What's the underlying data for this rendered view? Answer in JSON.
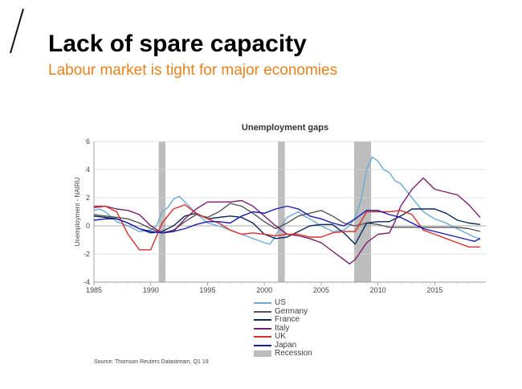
{
  "slide": {
    "title": "Lack of spare capacity",
    "subtitle": "Labour market is tight for major economies",
    "source": "Source: Thomson Reuters Datastream, Q1 19"
  },
  "colors": {
    "accent": "#e8821e",
    "US": "#6aaad6",
    "Germany": "#555555",
    "France": "#0a2a5c",
    "Italy": "#7a1f6f",
    "UK": "#d8322f",
    "Japan": "#1a1aae",
    "Recession": "#bdbdbd"
  },
  "chart_data": {
    "type": "line",
    "title": "Unemployment gaps",
    "xlabel": "",
    "ylabel": "Unemployment - NAIRU",
    "xlim": [
      1985,
      2019.5
    ],
    "ylim": [
      -4,
      6
    ],
    "xticks": [
      "1985",
      "1990",
      "1995",
      "2000",
      "2005",
      "2010",
      "2015"
    ],
    "yticks": [
      "-4",
      "-2",
      "0",
      "2",
      "4",
      "6"
    ],
    "grid": "horizontal",
    "legend_position": "bottom",
    "recessions": [
      [
        1990.7,
        1991.3
      ],
      [
        2001.2,
        2001.8
      ],
      [
        2007.9,
        2009.4
      ]
    ],
    "series": [
      {
        "name": "US",
        "points": [
          [
            1985,
            1.1
          ],
          [
            1985.5,
            1.2
          ],
          [
            1986,
            1.0
          ],
          [
            1987,
            0.3
          ],
          [
            1988,
            0
          ],
          [
            1989,
            -0.4
          ],
          [
            1990,
            -0.3
          ],
          [
            1990.5,
            0
          ],
          [
            1991,
            1.0
          ],
          [
            1991.5,
            1.3
          ],
          [
            1992,
            1.9
          ],
          [
            1992.5,
            2.1
          ],
          [
            1993,
            1.7
          ],
          [
            1994,
            0.9
          ],
          [
            1995,
            0.2
          ],
          [
            1996,
            0
          ],
          [
            1997,
            -0.3
          ],
          [
            1998,
            -0.6
          ],
          [
            1999,
            -0.9
          ],
          [
            2000,
            -1.2
          ],
          [
            2000.5,
            -1.3
          ],
          [
            2001,
            -0.7
          ],
          [
            2001.5,
            0
          ],
          [
            2002,
            0.6
          ],
          [
            2002.5,
            0.8
          ],
          [
            2003,
            1.0
          ],
          [
            2003.5,
            0.7
          ],
          [
            2004,
            0.5
          ],
          [
            2005,
            0
          ],
          [
            2006,
            -0.4
          ],
          [
            2007,
            -0.3
          ],
          [
            2007.5,
            0
          ],
          [
            2008,
            0.6
          ],
          [
            2008.5,
            1.8
          ],
          [
            2009,
            4.0
          ],
          [
            2009.5,
            4.9
          ],
          [
            2010,
            4.6
          ],
          [
            2010.5,
            4.0
          ],
          [
            2011,
            3.8
          ],
          [
            2011.5,
            3.2
          ],
          [
            2012,
            3.0
          ],
          [
            2012.5,
            2.5
          ],
          [
            2013,
            2.0
          ],
          [
            2013.5,
            1.5
          ],
          [
            2014,
            1.0
          ],
          [
            2015,
            0.5
          ],
          [
            2016,
            0.2
          ],
          [
            2017,
            -0.2
          ],
          [
            2018,
            -0.6
          ],
          [
            2018.5,
            -0.8
          ],
          [
            2019,
            -0.9
          ]
        ]
      },
      {
        "name": "Germany",
        "points": [
          [
            1985,
            0.8
          ],
          [
            1986,
            0.7
          ],
          [
            1987,
            0.6
          ],
          [
            1988,
            0.5
          ],
          [
            1989,
            0.2
          ],
          [
            1990,
            -0.2
          ],
          [
            1991,
            -0.5
          ],
          [
            1992,
            -0.3
          ],
          [
            1993,
            0.3
          ],
          [
            1994,
            0.8
          ],
          [
            1995,
            0.6
          ],
          [
            1996,
            1.0
          ],
          [
            1997,
            1.6
          ],
          [
            1998,
            1.4
          ],
          [
            1999,
            0.9
          ],
          [
            2000,
            0.3
          ],
          [
            2001,
            -0.2
          ],
          [
            2002,
            0.2
          ],
          [
            2003,
            0.7
          ],
          [
            2004,
            0.9
          ],
          [
            2005,
            1.1
          ],
          [
            2006,
            0.7
          ],
          [
            2007,
            0.2
          ],
          [
            2008,
            0
          ],
          [
            2009,
            0.2
          ],
          [
            2010,
            0.1
          ],
          [
            2011,
            -0.1
          ],
          [
            2012,
            -0.1
          ],
          [
            2013,
            -0.1
          ],
          [
            2014,
            -0.1
          ],
          [
            2015,
            -0.1
          ],
          [
            2016,
            -0.1
          ],
          [
            2017,
            -0.1
          ],
          [
            2018,
            -0.2
          ],
          [
            2019,
            -0.4
          ]
        ]
      },
      {
        "name": "France",
        "points": [
          [
            1985,
            0.7
          ],
          [
            1986,
            0.6
          ],
          [
            1987,
            0.5
          ],
          [
            1988,
            0.2
          ],
          [
            1989,
            -0.2
          ],
          [
            1990,
            -0.5
          ],
          [
            1991,
            -0.4
          ],
          [
            1992,
            0
          ],
          [
            1993,
            0.7
          ],
          [
            1994,
            0.9
          ],
          [
            1995,
            0.5
          ],
          [
            1996,
            0.6
          ],
          [
            1997,
            0.7
          ],
          [
            1998,
            0.6
          ],
          [
            1999,
            0.2
          ],
          [
            2000,
            -0.6
          ],
          [
            2001,
            -0.9
          ],
          [
            2002,
            -0.8
          ],
          [
            2003,
            -0.4
          ],
          [
            2004,
            0
          ],
          [
            2005,
            0.1
          ],
          [
            2006,
            0.1
          ],
          [
            2007,
            -0.5
          ],
          [
            2008,
            -1.3
          ],
          [
            2009,
            0.2
          ],
          [
            2010,
            0.3
          ],
          [
            2011,
            0.3
          ],
          [
            2012,
            0.7
          ],
          [
            2013,
            1.2
          ],
          [
            2014,
            1.2
          ],
          [
            2015,
            1.2
          ],
          [
            2016,
            0.9
          ],
          [
            2017,
            0.4
          ],
          [
            2018,
            0.2
          ],
          [
            2019,
            0.1
          ]
        ]
      },
      {
        "name": "Italy",
        "points": [
          [
            1985,
            1.3
          ],
          [
            1986,
            1.4
          ],
          [
            1987,
            1.2
          ],
          [
            1988,
            1.1
          ],
          [
            1989,
            0.8
          ],
          [
            1990,
            0
          ],
          [
            1991,
            -0.5
          ],
          [
            1992,
            -0.4
          ],
          [
            1993,
            0.5
          ],
          [
            1994,
            1.2
          ],
          [
            1995,
            1.7
          ],
          [
            1996,
            1.7
          ],
          [
            1997,
            1.7
          ],
          [
            1998,
            1.8
          ],
          [
            1999,
            1.4
          ],
          [
            2000,
            0.7
          ],
          [
            2001,
            0
          ],
          [
            2002,
            -0.6
          ],
          [
            2003,
            -0.7
          ],
          [
            2004,
            -0.9
          ],
          [
            2005,
            -1.2
          ],
          [
            2006,
            -1.8
          ],
          [
            2007,
            -2.4
          ],
          [
            2007.5,
            -2.7
          ],
          [
            2008,
            -2.4
          ],
          [
            2009,
            -1.2
          ],
          [
            2010,
            -0.6
          ],
          [
            2011,
            -0.5
          ],
          [
            2011.5,
            0.3
          ],
          [
            2012,
            1.4
          ],
          [
            2013,
            2.6
          ],
          [
            2014,
            3.4
          ],
          [
            2015,
            2.6
          ],
          [
            2016,
            2.4
          ],
          [
            2017,
            2.2
          ],
          [
            2018,
            1.5
          ],
          [
            2019,
            0.6
          ]
        ]
      },
      {
        "name": "UK",
        "points": [
          [
            1985,
            1.4
          ],
          [
            1986,
            1.4
          ],
          [
            1987,
            1.0
          ],
          [
            1988,
            -0.6
          ],
          [
            1989,
            -1.7
          ],
          [
            1990,
            -1.7
          ],
          [
            1991,
            0.2
          ],
          [
            1992,
            1.2
          ],
          [
            1993,
            1.5
          ],
          [
            1994,
            0.9
          ],
          [
            1995,
            0.5
          ],
          [
            1996,
            0.2
          ],
          [
            1997,
            -0.3
          ],
          [
            1998,
            -0.6
          ],
          [
            1999,
            -0.5
          ],
          [
            2000,
            -0.6
          ],
          [
            2001,
            -0.7
          ],
          [
            2002,
            -0.6
          ],
          [
            2003,
            -0.6
          ],
          [
            2004,
            -0.8
          ],
          [
            2005,
            -0.8
          ],
          [
            2006,
            -0.5
          ],
          [
            2007,
            -0.4
          ],
          [
            2008,
            -0.4
          ],
          [
            2009,
            1.0
          ],
          [
            2010,
            1.0
          ],
          [
            2011,
            1.0
          ],
          [
            2012,
            1.1
          ],
          [
            2013,
            0.8
          ],
          [
            2014,
            -0.3
          ],
          [
            2015,
            -0.6
          ],
          [
            2016,
            -0.9
          ],
          [
            2017,
            -1.2
          ],
          [
            2018,
            -1.5
          ],
          [
            2019,
            -1.5
          ]
        ]
      },
      {
        "name": "Japan",
        "points": [
          [
            1985,
            0.4
          ],
          [
            1986,
            0.5
          ],
          [
            1987,
            0.5
          ],
          [
            1988,
            0.2
          ],
          [
            1989,
            -0.2
          ],
          [
            1990,
            -0.4
          ],
          [
            1991,
            -0.5
          ],
          [
            1992,
            -0.4
          ],
          [
            1993,
            -0.2
          ],
          [
            1994,
            0.1
          ],
          [
            1995,
            0.3
          ],
          [
            1996,
            0.3
          ],
          [
            1997,
            0.2
          ],
          [
            1998,
            0.7
          ],
          [
            1999,
            1.0
          ],
          [
            2000,
            0.9
          ],
          [
            2001,
            1.2
          ],
          [
            2002,
            1.4
          ],
          [
            2003,
            1.2
          ],
          [
            2004,
            0.7
          ],
          [
            2005,
            0.5
          ],
          [
            2006,
            0.2
          ],
          [
            2007,
            0
          ],
          [
            2008,
            0.5
          ],
          [
            2009,
            1.1
          ],
          [
            2010,
            1.1
          ],
          [
            2011,
            0.8
          ],
          [
            2012,
            0.6
          ],
          [
            2013,
            0.2
          ],
          [
            2014,
            -0.2
          ],
          [
            2015,
            -0.4
          ],
          [
            2016,
            -0.6
          ],
          [
            2017,
            -0.8
          ],
          [
            2018,
            -1.0
          ],
          [
            2018.5,
            -1.1
          ],
          [
            2019,
            -0.9
          ]
        ]
      }
    ]
  }
}
